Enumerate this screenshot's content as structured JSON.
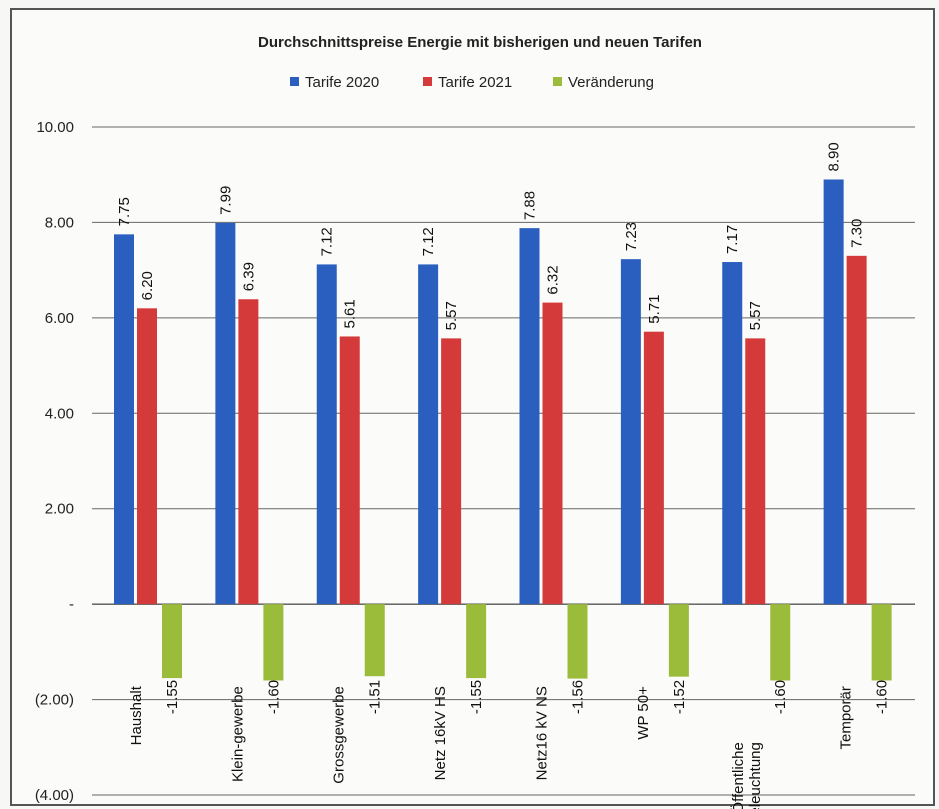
{
  "chart_data": {
    "type": "bar",
    "title": "Durchschnittspreise  Energie mit bisherigen und neuen Tarifen",
    "categories": [
      "Haushalt",
      "Klein-gewerbe",
      "Grossgewerbe",
      "Netz 16kV HS",
      "Netz16 kV NS",
      "WP 50+",
      "Öffentliche Beleuchtung",
      "Temporär"
    ],
    "series": [
      {
        "name": "Tarife 2020",
        "color": "#2a5fbf",
        "values": [
          7.75,
          7.99,
          7.12,
          7.12,
          7.88,
          7.23,
          7.17,
          8.9
        ],
        "labels": [
          "7.75",
          "7.99",
          "7.12",
          "7.12",
          "7.88",
          "7.23",
          "7.17",
          "8.90"
        ]
      },
      {
        "name": "Tarife 2021",
        "color": "#d43a3a",
        "values": [
          6.2,
          6.39,
          5.61,
          5.57,
          6.32,
          5.71,
          5.57,
          7.3
        ],
        "labels": [
          "6.20",
          "6.39",
          "5.61",
          "5.57",
          "6.32",
          "5.71",
          "5.57",
          "7.30"
        ]
      },
      {
        "name": "Veränderung",
        "color": "#9bbb3b",
        "values": [
          -1.55,
          -1.6,
          -1.51,
          -1.55,
          -1.56,
          -1.52,
          -1.6,
          -1.6
        ],
        "labels": [
          "-1.55",
          "-1.60",
          "-1.51",
          "-1.55",
          "-1.56",
          "-1.52",
          "-1.60",
          "-1.60"
        ]
      }
    ],
    "ylim": [
      -4,
      10
    ],
    "yticks": [
      10,
      8,
      6,
      4,
      2,
      0,
      -2,
      -4
    ],
    "ytick_labels": [
      "10.00",
      "8.00",
      "6.00",
      "4.00",
      "2.00",
      "-",
      "(2.00)",
      "(4.00)"
    ],
    "grid": true,
    "legend_position": "top"
  }
}
